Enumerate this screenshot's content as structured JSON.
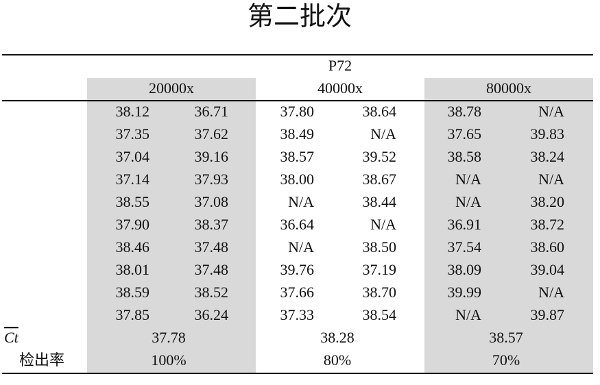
{
  "title": "第二批次",
  "table": {
    "group": "P72",
    "columns": [
      "20000x",
      "40000x",
      "80000x"
    ],
    "rows": [
      [
        "38.12",
        "36.71",
        "37.80",
        "38.64",
        "38.78",
        "N/A"
      ],
      [
        "37.35",
        "37.62",
        "38.49",
        "N/A",
        "37.65",
        "39.83"
      ],
      [
        "37.04",
        "39.16",
        "38.57",
        "39.52",
        "38.58",
        "38.24"
      ],
      [
        "37.14",
        "37.93",
        "38.00",
        "38.67",
        "N/A",
        "N/A"
      ],
      [
        "38.55",
        "37.08",
        "N/A",
        "38.44",
        "N/A",
        "38.20"
      ],
      [
        "37.90",
        "38.37",
        "36.64",
        "N/A",
        "36.91",
        "38.72"
      ],
      [
        "38.46",
        "37.48",
        "N/A",
        "38.50",
        "37.54",
        "38.60"
      ],
      [
        "38.01",
        "37.48",
        "39.76",
        "37.19",
        "38.09",
        "39.04"
      ],
      [
        "38.59",
        "38.52",
        "37.66",
        "38.70",
        "39.99",
        "N/A"
      ],
      [
        "37.85",
        "36.24",
        "37.33",
        "38.54",
        "N/A",
        "39.87"
      ]
    ],
    "summary": [
      {
        "label": "Ct",
        "values": [
          "37.78",
          "38.28",
          "38.57"
        ]
      },
      {
        "label": "检出率",
        "values": [
          "100%",
          "80%",
          "70%"
        ]
      }
    ]
  }
}
